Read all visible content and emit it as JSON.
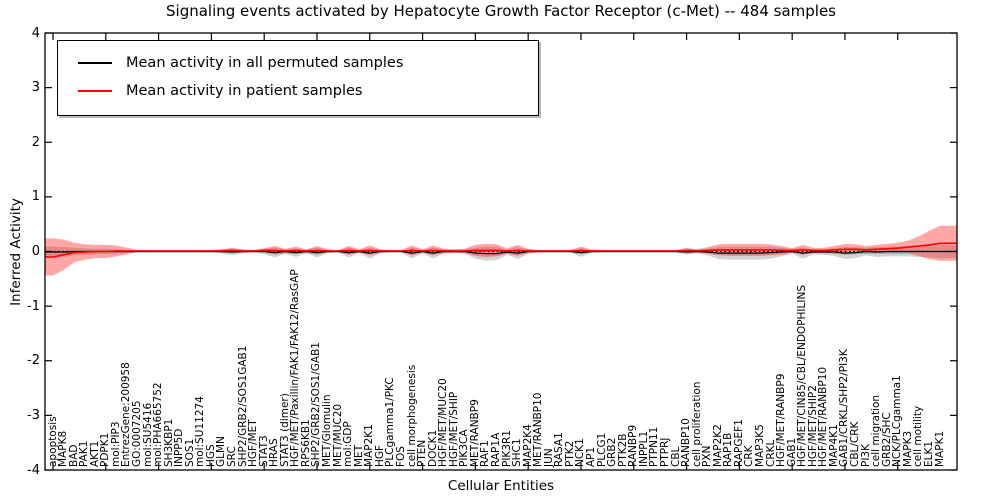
{
  "title": "Signaling events activated by Hepatocyte Growth Factor Receptor (c-Met) -- 484 samples",
  "legend": {
    "items": [
      {
        "label": "Mean activity in all permuted samples",
        "color": "#000000"
      },
      {
        "label": "Mean activity in patient samples",
        "color": "#ff0000"
      }
    ]
  },
  "axes": {
    "ylabel": "Inferred Activity",
    "xlabel": "Cellular Entities",
    "yticks": [
      4,
      3,
      2,
      1,
      0,
      -1,
      -2,
      -3,
      -4
    ],
    "ylim": [
      -4,
      4
    ]
  },
  "colors": {
    "permuted_line": "#000000",
    "patient_line": "#ff0000",
    "permuted_band": "#808080",
    "patient_band": "#ff0000",
    "zero_line": "#000000",
    "extra_line": "#45c8f0"
  },
  "chart_data": {
    "type": "line",
    "title": "Signaling events activated by Hepatocyte Growth Factor Receptor (c-Met) -- 484 samples",
    "xlabel": "Cellular Entities",
    "ylabel": "Inferred Activity",
    "ylim": [
      -4,
      4
    ],
    "grid": false,
    "legend_position": "upper left",
    "categories": [
      "apoptosis",
      "MAPK8",
      "BAD",
      "PAK1",
      "AKT1",
      "PDPK1",
      "mol:PIP3",
      "EntrezGene:200958",
      "GO:0007205",
      "mol:SU5416",
      "mol:PHA665752",
      "SH3KBP1",
      "INPP5D",
      "SOS1",
      "mol:SU11274",
      "HGS",
      "GLMN",
      "SRC",
      "SHP2/GRB2/SOS1GAB1",
      "HGF/MET",
      "STAT3",
      "HRAS",
      "STAT3 (dimer)",
      "HGF/MET/Paxillin/FAK1/FAK12/RasGAP",
      "RPS6KB1",
      "SHP2/GRB2/SOS1/GAB1",
      "MET/Glomulin",
      "MET/MUC20",
      "mol:GDP",
      "MET",
      "MAP2K1",
      "HGF",
      "PLCgamma1/PKC",
      "FOS",
      "cell morphogenesis",
      "PTEN",
      "DOCK1",
      "HGF/MET/MUC20",
      "HGF/MET/SHIP",
      "PIK3CA",
      "MET/RANBP9",
      "RAF1",
      "RAP1A",
      "PIK3R1",
      "SHC1",
      "MAP2K4",
      "MET/RANBP10",
      "JUN",
      "RASA1",
      "PTK2",
      "NCK1",
      "AP1",
      "PLCG1",
      "GRB2",
      "PTK2B",
      "RANBP9",
      "INPPL1",
      "PTPN11",
      "PTPRJ",
      "CBL",
      "RANBP10",
      "cell proliferation",
      "PXN",
      "MAP2K2",
      "RAP1B",
      "RAPGEF1",
      "CRK",
      "MAP3K5",
      "CRKL",
      "HGF/MET/RANBP9",
      "GAB1",
      "HGF/MET/CIN85/CBL/ENDOPHILINS",
      "HGF/MET/SHIP2",
      "HGF/MET/RANBP10",
      "MAP4K1",
      "GAB1/CRKL/SHP2/PI3K",
      "CBL/CRK",
      "PI3K",
      "cell migration",
      "GRB2/SHC",
      "NCK/PLCgamma1",
      "MAPK3",
      "cell motility",
      "ELK1",
      "MAPK1"
    ],
    "series": [
      {
        "name": "Mean activity in all permuted samples",
        "color": "#000000",
        "values": [
          -0.01,
          -0.01,
          0,
          0,
          0,
          0,
          0,
          0,
          0,
          0,
          0,
          0,
          0,
          0,
          0,
          0,
          0,
          -0.01,
          0,
          0,
          0,
          -0.02,
          0,
          -0.02,
          0,
          -0.02,
          0,
          0,
          -0.02,
          0,
          -0.03,
          0,
          0,
          0,
          -0.03,
          0,
          -0.03,
          0,
          0,
          0,
          -0.03,
          -0.04,
          -0.04,
          -0.01,
          -0.03,
          0,
          0,
          0,
          0,
          0,
          -0.02,
          0,
          0,
          0,
          0,
          0,
          0,
          0,
          0,
          0,
          -0.01,
          0,
          -0.01,
          -0.03,
          -0.03,
          -0.03,
          -0.03,
          -0.03,
          -0.02,
          -0.01,
          0,
          -0.03,
          -0.01,
          -0.01,
          -0.01,
          -0.03,
          -0.02,
          0,
          -0.01,
          0,
          0,
          0,
          0,
          0,
          0
        ]
      },
      {
        "name": "Mean activity in patient samples",
        "color": "#ff0000",
        "values": [
          -0.1,
          -0.06,
          -0.02,
          -0.01,
          0,
          0,
          0.01,
          0.01,
          0.01,
          0.01,
          0.01,
          0.01,
          0.01,
          0.01,
          0.01,
          0.01,
          0.01,
          0.02,
          0.01,
          0.01,
          0.02,
          0.02,
          0.01,
          0.02,
          0.01,
          0.02,
          0.01,
          0.01,
          0.02,
          0.01,
          0.02,
          0.01,
          0.01,
          0.01,
          0.02,
          0.01,
          0.02,
          0.01,
          0.01,
          0.01,
          0.02,
          0.02,
          0.02,
          0.01,
          0.02,
          0.01,
          0.01,
          0.01,
          0.01,
          0.01,
          0.02,
          0.01,
          0.01,
          0.01,
          0.01,
          0.01,
          0.01,
          0.01,
          0.01,
          0.01,
          0.02,
          0.01,
          0.02,
          0.03,
          0.03,
          0.03,
          0.03,
          0.03,
          0.03,
          0.02,
          0.02,
          0.03,
          0.02,
          0.02,
          0.03,
          0.04,
          0.04,
          0.03,
          0.04,
          0.05,
          0.06,
          0.08,
          0.1,
          0.12,
          0.15
        ]
      }
    ],
    "bands": [
      {
        "name": "permuted band",
        "color": "#808080",
        "alpha": 0.35,
        "center_series": 0,
        "half_widths": [
          0.1,
          0.09,
          0.07,
          0.06,
          0.05,
          0.05,
          0.04,
          0.03,
          0.02,
          0.02,
          0.02,
          0.02,
          0.02,
          0.02,
          0.02,
          0.02,
          0.04,
          0.06,
          0.03,
          0.02,
          0.05,
          0.09,
          0.04,
          0.08,
          0.03,
          0.09,
          0.03,
          0.02,
          0.09,
          0.03,
          0.1,
          0.03,
          0.02,
          0.02,
          0.1,
          0.03,
          0.1,
          0.04,
          0.03,
          0.04,
          0.1,
          0.13,
          0.12,
          0.05,
          0.11,
          0.04,
          0.02,
          0.02,
          0.02,
          0.02,
          0.08,
          0.02,
          0.02,
          0.02,
          0.02,
          0.02,
          0.02,
          0.02,
          0.02,
          0.02,
          0.05,
          0.03,
          0.06,
          0.11,
          0.12,
          0.12,
          0.12,
          0.12,
          0.11,
          0.08,
          0.04,
          0.1,
          0.05,
          0.05,
          0.07,
          0.11,
          0.1,
          0.07,
          0.09,
          0.09,
          0.09,
          0.09,
          0.1,
          0.11,
          0.12
        ]
      },
      {
        "name": "patient band",
        "color": "#ff0000",
        "alpha": 0.35,
        "center_series": 1,
        "half_widths": [
          0.34,
          0.28,
          0.18,
          0.14,
          0.12,
          0.12,
          0.1,
          0.06,
          0.02,
          0.01,
          0.01,
          0.01,
          0.01,
          0.01,
          0.01,
          0.02,
          0.03,
          0.05,
          0.03,
          0.02,
          0.04,
          0.08,
          0.04,
          0.07,
          0.03,
          0.08,
          0.03,
          0.02,
          0.08,
          0.03,
          0.09,
          0.03,
          0.02,
          0.02,
          0.09,
          0.03,
          0.09,
          0.04,
          0.03,
          0.04,
          0.1,
          0.12,
          0.11,
          0.05,
          0.1,
          0.04,
          0.02,
          0.02,
          0.02,
          0.02,
          0.07,
          0.03,
          0.02,
          0.02,
          0.02,
          0.02,
          0.02,
          0.02,
          0.02,
          0.02,
          0.05,
          0.03,
          0.06,
          0.1,
          0.11,
          0.11,
          0.11,
          0.11,
          0.1,
          0.08,
          0.04,
          0.09,
          0.05,
          0.05,
          0.07,
          0.1,
          0.09,
          0.07,
          0.08,
          0.09,
          0.1,
          0.12,
          0.18,
          0.26,
          0.32
        ]
      }
    ],
    "zero_line": {
      "y": 0,
      "style": "dotted",
      "color": "#000000"
    },
    "extra_segment": {
      "y": -0.02,
      "from_index": 75,
      "to_index": 81,
      "style": "dashed",
      "color": "#45c8f0"
    }
  }
}
